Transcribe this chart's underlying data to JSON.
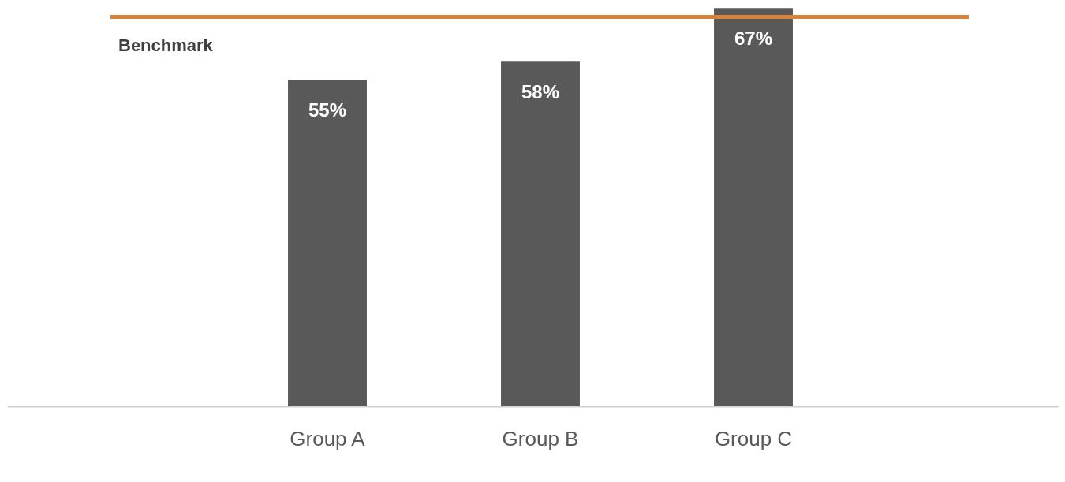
{
  "chart_data": {
    "type": "bar",
    "categories": [
      "Group A",
      "Group B",
      "Group C"
    ],
    "values": [
      55,
      58,
      67
    ],
    "value_labels": [
      "55%",
      "58%",
      "67%"
    ],
    "color": "#595959",
    "ylim": [
      0,
      67.3
    ],
    "tick_labels": "x",
    "grid": false,
    "legend": false,
    "ref_lines": [
      {
        "axis": "y",
        "value": 65.5,
        "label": "Benchmark",
        "color": "#d9823b"
      }
    ]
  }
}
